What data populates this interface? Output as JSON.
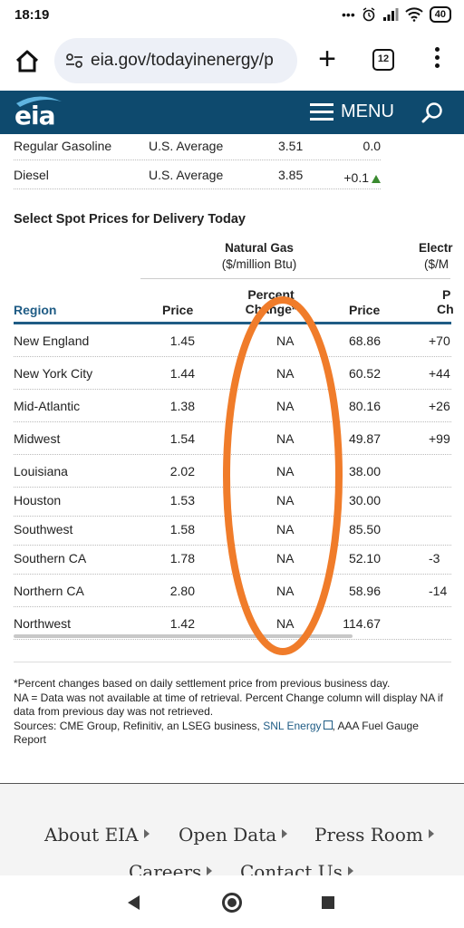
{
  "status_bar": {
    "time": "18:19",
    "dots": "•••",
    "battery": "40"
  },
  "browser": {
    "url": "eia.gov/todayinenergy/p",
    "tab_count": "12",
    "plus": "+"
  },
  "header": {
    "logo": "eia",
    "menu_label": "MENU"
  },
  "fuel_rows": [
    {
      "type": "Regular Gasoline",
      "region": "U.S. Average",
      "price": "3.51",
      "change": "0.0"
    },
    {
      "type": "Diesel",
      "region": "U.S. Average",
      "price": "3.85",
      "change": "+0.1"
    }
  ],
  "fuel_colors": {
    "up_arrow": "#3a8a2f"
  },
  "spot_section": {
    "title": "Select Spot Prices for Delivery Today",
    "natural_gas": {
      "name": "Natural Gas",
      "unit": "($/million Btu)"
    },
    "electricity": {
      "name": "Electr",
      "unit": "($/M"
    },
    "columns": {
      "region": "Region",
      "price": "Price",
      "pct_line1": "Percent",
      "pct_line2": "Change*",
      "e_price": "Price",
      "e_pct_line1": "P",
      "e_pct_line2": "Ch"
    },
    "rows": [
      {
        "region": "New England",
        "price": "1.45",
        "pct": "NA",
        "e_price": "68.86",
        "e_pct": "+70"
      },
      {
        "region": "New York City",
        "price": "1.44",
        "pct": "NA",
        "e_price": "60.52",
        "e_pct": "+44"
      },
      {
        "region": "Mid-Atlantic",
        "price": "1.38",
        "pct": "NA",
        "e_price": "80.16",
        "e_pct": "+26"
      },
      {
        "region": "Midwest",
        "price": "1.54",
        "pct": "NA",
        "e_price": "49.87",
        "e_pct": "+99"
      },
      {
        "region": "Louisiana",
        "price": "2.02",
        "pct": "NA",
        "e_price": "38.00",
        "e_pct": ""
      },
      {
        "region": "Houston",
        "price": "1.53",
        "pct": "NA",
        "e_price": "30.00",
        "e_pct": ""
      },
      {
        "region": "Southwest",
        "price": "1.58",
        "pct": "NA",
        "e_price": "85.50",
        "e_pct": ""
      },
      {
        "region": "Southern CA",
        "price": "1.78",
        "pct": "NA",
        "e_price": "52.10",
        "e_pct": "-3"
      },
      {
        "region": "Northern CA",
        "price": "2.80",
        "pct": "NA",
        "e_price": "58.96",
        "e_pct": "-14"
      },
      {
        "region": "Northwest",
        "price": "1.42",
        "pct": "NA",
        "e_price": "114.67",
        "e_pct": ""
      }
    ]
  },
  "footnote": {
    "line1": "*Percent changes based on daily settlement price from previous business day.",
    "line2": "NA = Data was not available at time of retrieval. Percent Change column will display NA if data from previous day was not retrieved.",
    "sources_prefix": "Sources: CME Group, Refinitiv, an LSEG business, ",
    "sources_link": "SNL Energy",
    "sources_suffix": ", AAA Fuel Gauge Report"
  },
  "footer": {
    "about": "About EIA",
    "open_data": "Open Data",
    "press_room": "Press Room",
    "careers": "Careers",
    "contact": "Contact Us"
  },
  "colors": {
    "header_bg": "#0e4a6e",
    "link": "#1f5c85",
    "annotation": "#f07c2a"
  }
}
